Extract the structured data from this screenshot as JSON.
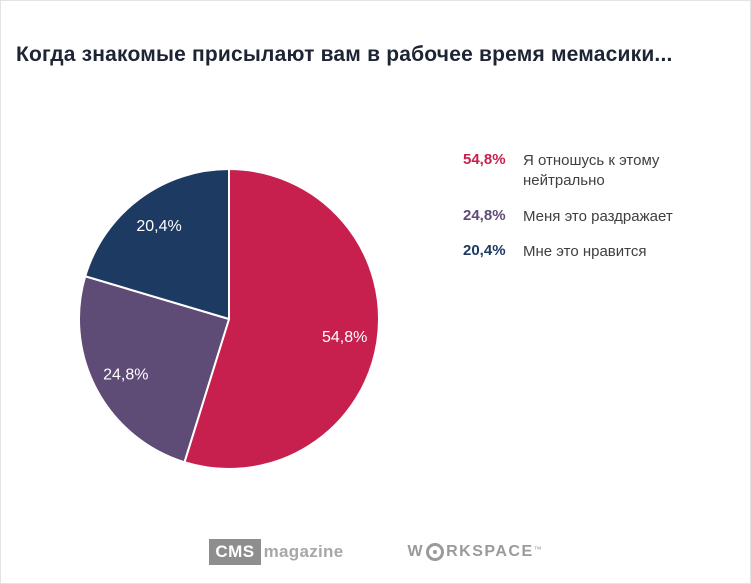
{
  "title": "Когда знакомые присылают вам в рабочее время мемасики...",
  "chart_data": {
    "type": "pie",
    "title": "Когда знакомые присылают вам в рабочее время мемасики...",
    "start_angle_deg": 0,
    "direction": "clockwise",
    "label_position": "inside",
    "legend_position": "right",
    "slices": [
      {
        "label": "Я отношусь к этому нейтрально",
        "value": 54.8,
        "display": "54,8%",
        "color": "#c8204e"
      },
      {
        "label": "Меня это раздражает",
        "value": 24.8,
        "display": "24,8%",
        "color": "#5e4b76"
      },
      {
        "label": "Мне это нравится",
        "value": 20.4,
        "display": "20,4%",
        "color": "#1d3a63"
      }
    ]
  },
  "legend": {
    "items": [
      {
        "percent": "54,8%",
        "label": "Я отношусь к этому нейтрально",
        "color": "#c8204e"
      },
      {
        "percent": "24,8%",
        "label": "Меня это раздражает",
        "color": "#5e4b76"
      },
      {
        "percent": "20,4%",
        "label": "Мне это нравится",
        "color": "#1d3a63"
      }
    ]
  },
  "footer": {
    "cms_logo": {
      "box": "CMS",
      "text": "magazine"
    },
    "workspace_logo": {
      "prefix": "W",
      "suffix": "RKSPACE",
      "tm": "™"
    }
  }
}
